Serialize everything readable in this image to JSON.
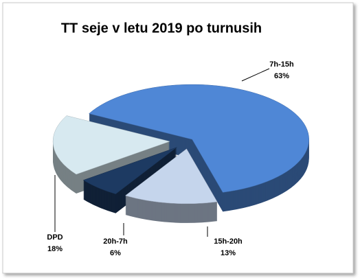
{
  "chart_data": {
    "type": "pie3d",
    "title": "TT seje v letu 2019 po turnusih",
    "categories": [
      "7h-15h",
      "15h-20h",
      "20h-7h",
      "DPD"
    ],
    "values": [
      63,
      13,
      6,
      18
    ],
    "value_labels": [
      "63%",
      "13%",
      "6%",
      "18%"
    ],
    "colors": [
      "#4f87d6",
      "#c5d5ec",
      "#1d3a62",
      "#d7e9f0"
    ]
  }
}
